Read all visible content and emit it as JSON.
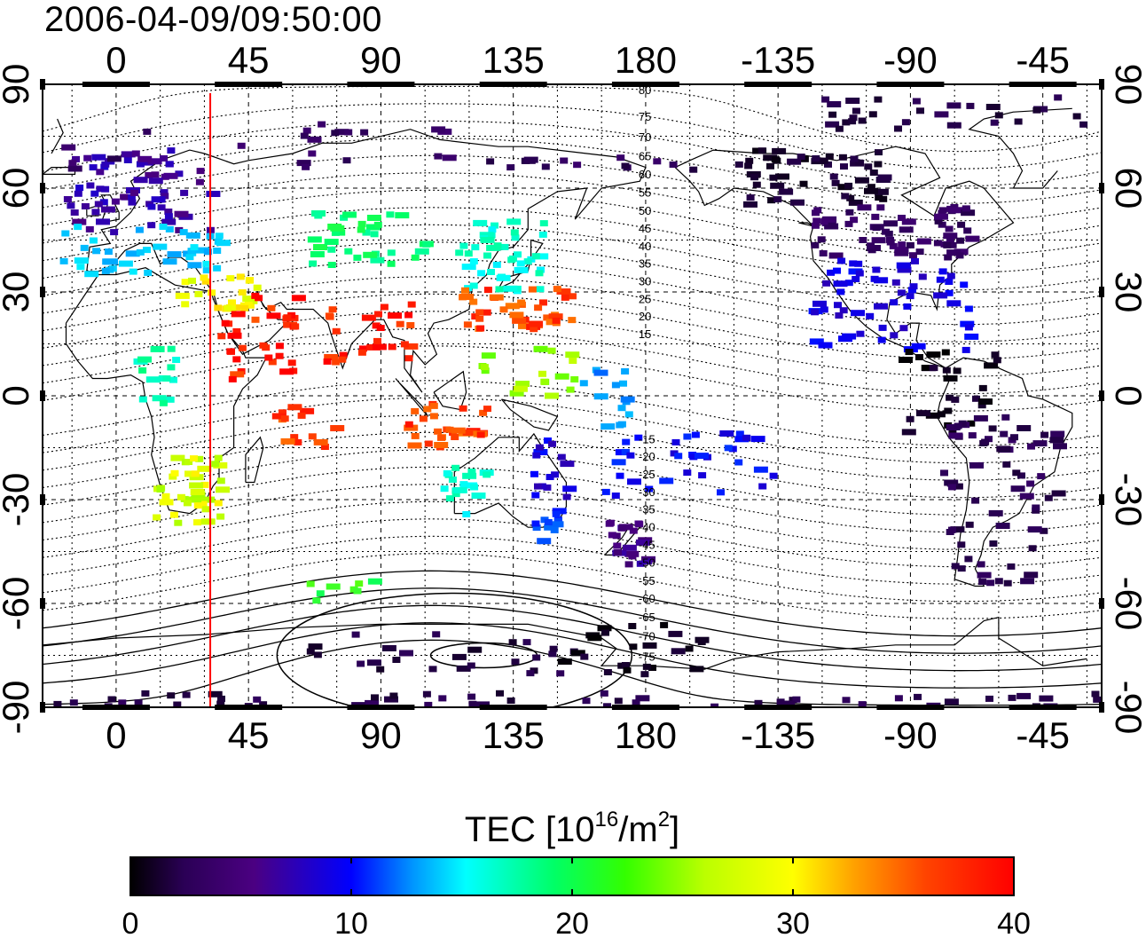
{
  "title": "2006-04-09/09:50:00",
  "map": {
    "lon_ticks": [
      {
        "lon": 0,
        "label": "0"
      },
      {
        "lon": 45,
        "label": "45"
      },
      {
        "lon": 90,
        "label": "90"
      },
      {
        "lon": 135,
        "label": "135"
      },
      {
        "lon": 180,
        "label": "180"
      },
      {
        "lon": 225,
        "label": "-135"
      },
      {
        "lon": 270,
        "label": "-90"
      },
      {
        "lon": 315,
        "label": "-45"
      }
    ],
    "lat_ticks": [
      {
        "lat": 90,
        "label": "90"
      },
      {
        "lat": 60,
        "label": "60"
      },
      {
        "lat": 30,
        "label": "30"
      },
      {
        "lat": 0,
        "label": "0"
      },
      {
        "lat": -30,
        "label": "-30"
      },
      {
        "lat": -60,
        "label": "-60"
      },
      {
        "lat": -90,
        "label": "-90"
      }
    ],
    "contour_labels": [
      "80",
      "75",
      "70",
      "65",
      "60",
      "55",
      "50",
      "45",
      "40",
      "35",
      "30",
      "25",
      "20",
      "15",
      "-15",
      "-20",
      "-25",
      "-30",
      "-35",
      "-40",
      "-45",
      "-50",
      "-55",
      "-60",
      "-65",
      "-70",
      "-75"
    ],
    "terminator_lon": 32,
    "terminator_color": "#ff0000"
  },
  "colorbar": {
    "label_main": "TEC  [10",
    "label_sup1": "16",
    "label_mid": "/m",
    "label_sup2": "2",
    "label_end": "]",
    "ticks": [
      "0",
      "10",
      "20",
      "30",
      "40"
    ],
    "min": 0,
    "max": 40
  },
  "chart_data": {
    "type": "heatmap",
    "title": "2006-04-09/09:50:00",
    "variable": "TEC",
    "unit": "10^16/m^2",
    "value_range": [
      0,
      40
    ],
    "colormap": [
      "#000000",
      "#2a0055",
      "#4b0082",
      "#0000ff",
      "#0096ff",
      "#00ffff",
      "#00ff66",
      "#66ff00",
      "#ffff00",
      "#ff8800",
      "#ff0000"
    ],
    "regions": [
      {
        "lon_min": -20,
        "lon_max": 32,
        "lat_min": 48,
        "lat_max": 72,
        "tec": 9,
        "n": 70
      },
      {
        "lon_min": -20,
        "lon_max": 35,
        "lat_min": 36,
        "lat_max": 50,
        "tec": 18,
        "n": 45
      },
      {
        "lon_min": 20,
        "lon_max": 50,
        "lat_min": 26,
        "lat_max": 36,
        "tec": 32,
        "n": 25
      },
      {
        "lon_min": 32,
        "lon_max": 60,
        "lat_min": 5,
        "lat_max": 30,
        "tec": 39,
        "n": 35
      },
      {
        "lon_min": 65,
        "lon_max": 105,
        "lat_min": 38,
        "lat_max": 55,
        "tec": 24,
        "n": 35
      },
      {
        "lon_min": 70,
        "lon_max": 100,
        "lat_min": 10,
        "lat_max": 28,
        "tec": 39,
        "n": 28
      },
      {
        "lon_min": 115,
        "lon_max": 145,
        "lat_min": 30,
        "lat_max": 52,
        "tec": 21,
        "n": 45
      },
      {
        "lon_min": 115,
        "lon_max": 155,
        "lat_min": 20,
        "lat_max": 32,
        "tec": 38,
        "n": 40
      },
      {
        "lon_min": 120,
        "lon_max": 155,
        "lat_min": 0,
        "lat_max": 15,
        "tec": 29,
        "n": 18
      },
      {
        "lon_min": 155,
        "lon_max": 175,
        "lat_min": -8,
        "lat_max": 10,
        "tec": 16,
        "n": 14
      },
      {
        "lon_min": 95,
        "lon_max": 125,
        "lat_min": -15,
        "lat_max": 0,
        "tec": 38,
        "n": 30
      },
      {
        "lon_min": 52,
        "lon_max": 75,
        "lat_min": -14,
        "lat_max": -2,
        "tec": 38,
        "n": 14
      },
      {
        "lon_min": 5,
        "lon_max": 20,
        "lat_min": -2,
        "lat_max": 15,
        "tec": 22,
        "n": 15
      },
      {
        "lon_min": 12,
        "lon_max": 35,
        "lat_min": -36,
        "lat_max": -16,
        "tec": 31,
        "n": 40
      },
      {
        "lon_min": 110,
        "lon_max": 125,
        "lat_min": -34,
        "lat_max": -18,
        "tec": 21,
        "n": 18
      },
      {
        "lon_min": 140,
        "lon_max": 152,
        "lat_min": -30,
        "lat_max": -12,
        "tec": 11,
        "n": 16
      },
      {
        "lon_min": 140,
        "lon_max": 150,
        "lat_min": -42,
        "lat_max": -32,
        "tec": 14,
        "n": 12
      },
      {
        "lon_min": 165,
        "lon_max": 180,
        "lat_min": -48,
        "lat_max": -34,
        "tec": 8,
        "n": 22
      },
      {
        "lon_min": 165,
        "lon_max": 225,
        "lat_min": -28,
        "lat_max": -10,
        "tec": 12,
        "n": 35
      },
      {
        "lon_min": 210,
        "lon_max": 260,
        "lat_min": 56,
        "lat_max": 72,
        "tec": 2,
        "n": 55
      },
      {
        "lon_min": 235,
        "lon_max": 290,
        "lat_min": 40,
        "lat_max": 56,
        "tec": 5,
        "n": 70
      },
      {
        "lon_min": 235,
        "lon_max": 290,
        "lat_min": 14,
        "lat_max": 40,
        "tec": 11,
        "n": 60
      },
      {
        "lon_min": 265,
        "lon_max": 300,
        "lat_min": -10,
        "lat_max": 15,
        "tec": 1.5,
        "n": 30
      },
      {
        "lon_min": 280,
        "lon_max": 320,
        "lat_min": -55,
        "lat_max": -5,
        "tec": 4,
        "n": 65
      },
      {
        "lon_min": 150,
        "lon_max": 200,
        "lat_min": -80,
        "lat_max": -65,
        "tec": 1.5,
        "n": 25
      },
      {
        "lon_min": 60,
        "lon_max": 150,
        "lat_min": -80,
        "lat_max": -68,
        "tec": 3,
        "n": 25
      },
      {
        "lon_min": -25,
        "lon_max": 340,
        "lat_min": -89,
        "lat_max": -85,
        "tec": 3.5,
        "n": 55
      },
      {
        "lon_min": 235,
        "lon_max": 330,
        "lat_min": 78,
        "lat_max": 88,
        "tec": 3.5,
        "n": 30
      },
      {
        "lon_min": -20,
        "lon_max": 120,
        "lat_min": 66,
        "lat_max": 80,
        "tec": 5,
        "n": 22
      },
      {
        "lon_min": 125,
        "lon_max": 200,
        "lat_min": 66,
        "lat_max": 70,
        "tec": 4.5,
        "n": 14
      },
      {
        "lon_min": 60,
        "lon_max": 90,
        "lat_min": -60,
        "lat_max": -52,
        "tec": 26,
        "n": 8
      }
    ]
  }
}
